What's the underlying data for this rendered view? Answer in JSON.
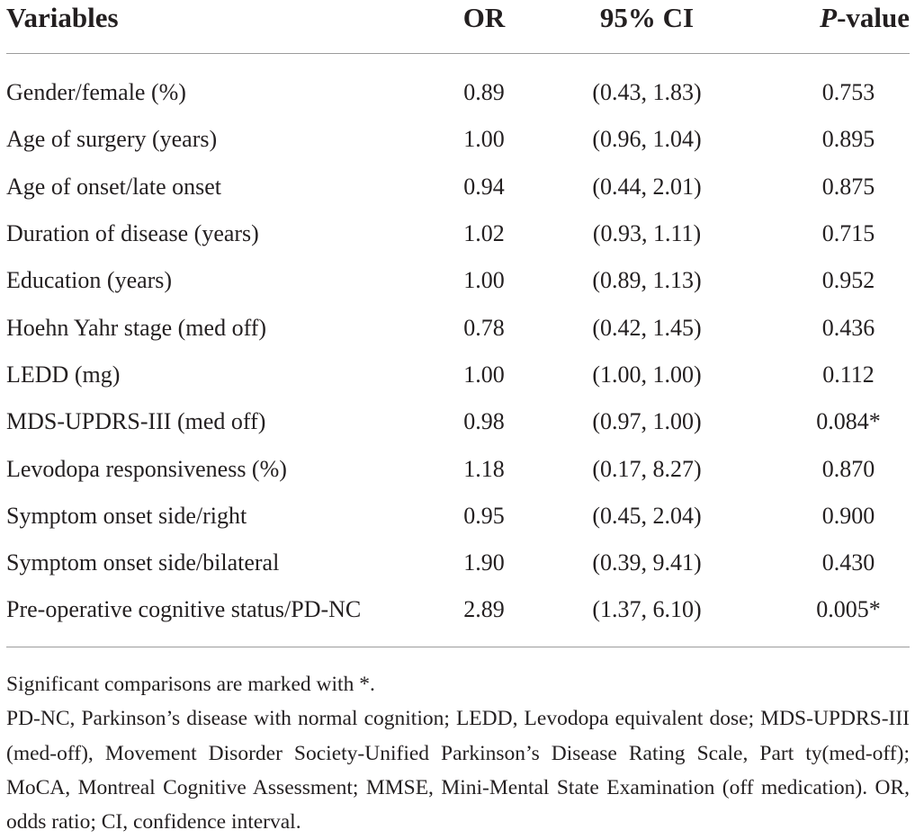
{
  "table": {
    "headers": {
      "variables": "Variables",
      "or": "OR",
      "ci": "95% CI",
      "p_prefix": "P",
      "p_suffix": "-value"
    },
    "rows": [
      {
        "variable": "Gender/female (%)",
        "or": "0.89",
        "ci": "(0.43, 1.83)",
        "p": "0.753"
      },
      {
        "variable": "Age of surgery (years)",
        "or": "1.00",
        "ci": "(0.96, 1.04)",
        "p": "0.895"
      },
      {
        "variable": "Age of onset/late onset",
        "or": "0.94",
        "ci": "(0.44, 2.01)",
        "p": "0.875"
      },
      {
        "variable": "Duration of disease (years)",
        "or": "1.02",
        "ci": "(0.93, 1.11)",
        "p": "0.715"
      },
      {
        "variable": "Education (years)",
        "or": "1.00",
        "ci": "(0.89, 1.13)",
        "p": "0.952"
      },
      {
        "variable": "Hoehn Yahr stage (med off)",
        "or": "0.78",
        "ci": "(0.42, 1.45)",
        "p": "0.436"
      },
      {
        "variable": "LEDD (mg)",
        "or": "1.00",
        "ci": "(1.00, 1.00)",
        "p": "0.112"
      },
      {
        "variable": "MDS-UPDRS-III (med off)",
        "or": "0.98",
        "ci": "(0.97, 1.00)",
        "p": "0.084*"
      },
      {
        "variable": "Levodopa responsiveness (%)",
        "or": "1.18",
        "ci": "(0.17, 8.27)",
        "p": "0.870"
      },
      {
        "variable": "Symptom onset side/right",
        "or": "0.95",
        "ci": "(0.45, 2.04)",
        "p": "0.900"
      },
      {
        "variable": "Symptom onset side/bilateral",
        "or": "1.90",
        "ci": "(0.39, 9.41)",
        "p": "0.430"
      },
      {
        "variable": "Pre-operative cognitive status/PD-NC",
        "or": "2.89",
        "ci": "(1.37, 6.10)",
        "p": "0.005*"
      }
    ]
  },
  "footnotes": {
    "significance": "Significant comparisons are marked with *.",
    "abbreviations": "PD-NC, Parkinson’s disease with normal cognition; LEDD, Levodopa equivalent dose; MDS-UPDRS-III (med-off), Movement Disorder Society-Unified Parkinson’s Disease Rating Scale, Part ty(med-off); MoCA, Montreal Cognitive Assessment; MMSE, Mini-Mental State Examination (off medication). OR, odds ratio; CI, confidence interval."
  }
}
